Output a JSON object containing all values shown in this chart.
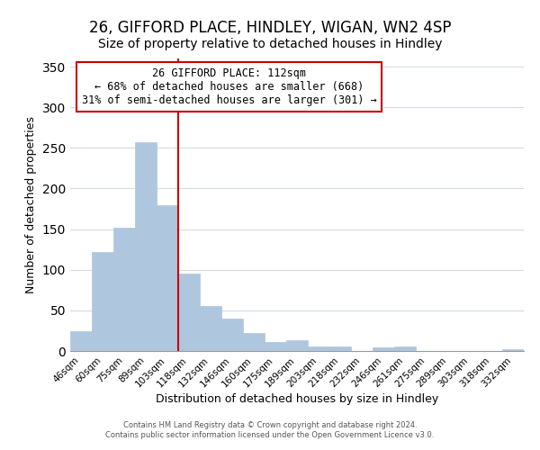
{
  "title": "26, GIFFORD PLACE, HINDLEY, WIGAN, WN2 4SP",
  "subtitle": "Size of property relative to detached houses in Hindley",
  "xlabel": "Distribution of detached houses by size in Hindley",
  "ylabel": "Number of detached properties",
  "bar_labels": [
    "46sqm",
    "60sqm",
    "75sqm",
    "89sqm",
    "103sqm",
    "118sqm",
    "132sqm",
    "146sqm",
    "160sqm",
    "175sqm",
    "189sqm",
    "203sqm",
    "218sqm",
    "232sqm",
    "246sqm",
    "261sqm",
    "275sqm",
    "289sqm",
    "303sqm",
    "318sqm",
    "332sqm"
  ],
  "bar_values": [
    24,
    122,
    152,
    257,
    180,
    95,
    55,
    40,
    22,
    11,
    13,
    5,
    6,
    0,
    4,
    5,
    0,
    0,
    0,
    0,
    2
  ],
  "bar_color": "#aec6de",
  "vline_x": 5,
  "vline_color": "#cc0000",
  "annotation_title": "26 GIFFORD PLACE: 112sqm",
  "annotation_line1": "← 68% of detached houses are smaller (668)",
  "annotation_line2": "31% of semi-detached houses are larger (301) →",
  "annotation_box_edge": "#cc0000",
  "annotation_box_bg": "#ffffff",
  "ylim": [
    0,
    360
  ],
  "footer1": "Contains HM Land Registry data © Crown copyright and database right 2024.",
  "footer2": "Contains public sector information licensed under the Open Government Licence v3.0.",
  "bg_color": "#ffffff",
  "grid_color": "#d0dce8",
  "title_fontsize": 12,
  "subtitle_fontsize": 10
}
